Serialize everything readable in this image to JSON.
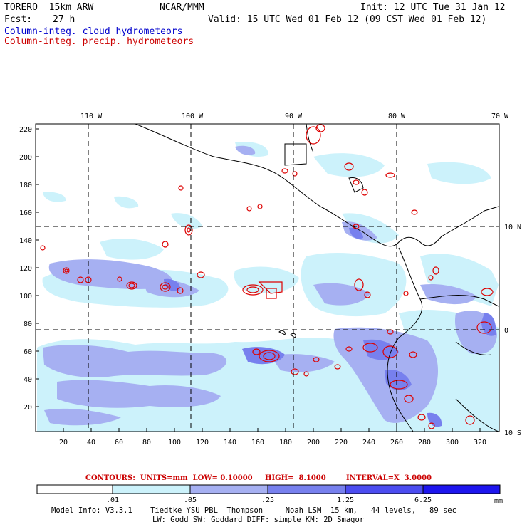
{
  "header": {
    "model": "TORERO  15km ARW",
    "org": "NCAR/MMM",
    "init": "Init: 12 UTC Tue 31 Jan 12",
    "fcst_label": "Fcst:",
    "fcst_value": "27 h",
    "valid": "Valid: 15 UTC Wed 01 Feb 12 (09 CST Wed 01 Feb 12)",
    "field1": "Column-integ. cloud hydrometeors",
    "field2": "Column-integ. precip. hydrometeors"
  },
  "colors": {
    "field1": "#0000cc",
    "field2": "#cc0000",
    "contour": "#dd0000",
    "shade_levels": [
      "#ccf2fb",
      "#a6b0f2",
      "#7780ee",
      "#4b4cf0",
      "#1d15ee"
    ]
  },
  "axes": {
    "lon_labels": [
      "110 W",
      "100 W",
      "90 W",
      "80 W",
      "70 W"
    ],
    "lat_labels": [
      "10 N",
      "0",
      "10 S"
    ],
    "y_ticks": [
      "220",
      "200",
      "180",
      "160",
      "140",
      "120",
      "100",
      "80",
      "60",
      "40",
      "20"
    ],
    "x_ticks": [
      "20",
      "40",
      "60",
      "80",
      "100",
      "120",
      "140",
      "160",
      "180",
      "200",
      "220",
      "240",
      "260",
      "280",
      "300",
      "320"
    ]
  },
  "contour_info": {
    "units": "CONTOURS:  UNITS=mm  LOW= 0.10000",
    "high": "HIGH=  8.1000",
    "interval": "INTERVAL=X  3.0000"
  },
  "colorbar": {
    "labels": [
      ".01",
      ".05",
      ".25",
      "1.25",
      "6.25"
    ],
    "unit": "mm"
  },
  "model_info": {
    "line1": "Model Info: V3.3.1    Tiedtke YSU PBL  Thompson     Noah LSM  15 km,   44 levels,   89 sec",
    "line2": "LW: Godd SW: Goddard DIFF: simple KM: 2D Smagor"
  }
}
